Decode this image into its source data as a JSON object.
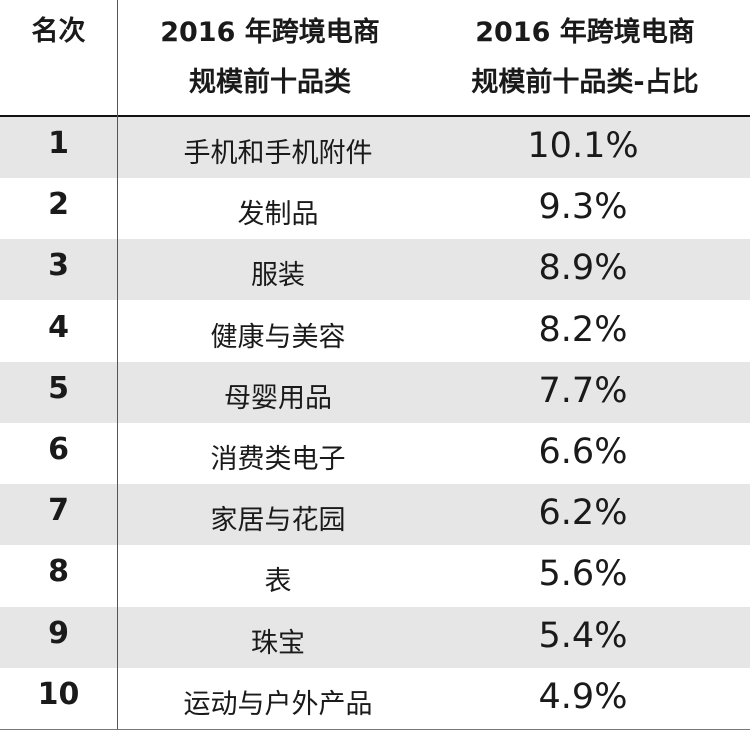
{
  "chart_data": {
    "type": "table",
    "columns": [
      "名次",
      "2016 年跨境电商规模前十品类",
      "2016 年跨境电商规模前十品类-占比"
    ],
    "header": {
      "rank": "名次",
      "category_line1": "2016 年跨境电商",
      "category_line2": "规模前十品类",
      "share_line1": "2016 年跨境电商",
      "share_line2": "规模前十品类-占比"
    },
    "rows": [
      {
        "rank": "1",
        "category": "手机和手机附件",
        "share": "10.1%",
        "value": 10.1
      },
      {
        "rank": "2",
        "category": "发制品",
        "share": "9.3%",
        "value": 9.3
      },
      {
        "rank": "3",
        "category": "服装",
        "share": "8.9%",
        "value": 8.9
      },
      {
        "rank": "4",
        "category": "健康与美容",
        "share": "8.2%",
        "value": 8.2
      },
      {
        "rank": "5",
        "category": "母婴用品",
        "share": "7.7%",
        "value": 7.7
      },
      {
        "rank": "6",
        "category": "消费类电子",
        "share": "6.6%",
        "value": 6.6
      },
      {
        "rank": "7",
        "category": "家居与花园",
        "share": "6.2%",
        "value": 6.2
      },
      {
        "rank": "8",
        "category": "表",
        "share": "5.6%",
        "value": 5.6
      },
      {
        "rank": "9",
        "category": "珠宝",
        "share": "5.4%",
        "value": 5.4
      },
      {
        "rank": "10",
        "category": "运动与户外产品",
        "share": "4.9%",
        "value": 4.9
      }
    ]
  },
  "colors": {
    "shaded_row": "#e6e6e6",
    "text": "#1a1a1a"
  }
}
